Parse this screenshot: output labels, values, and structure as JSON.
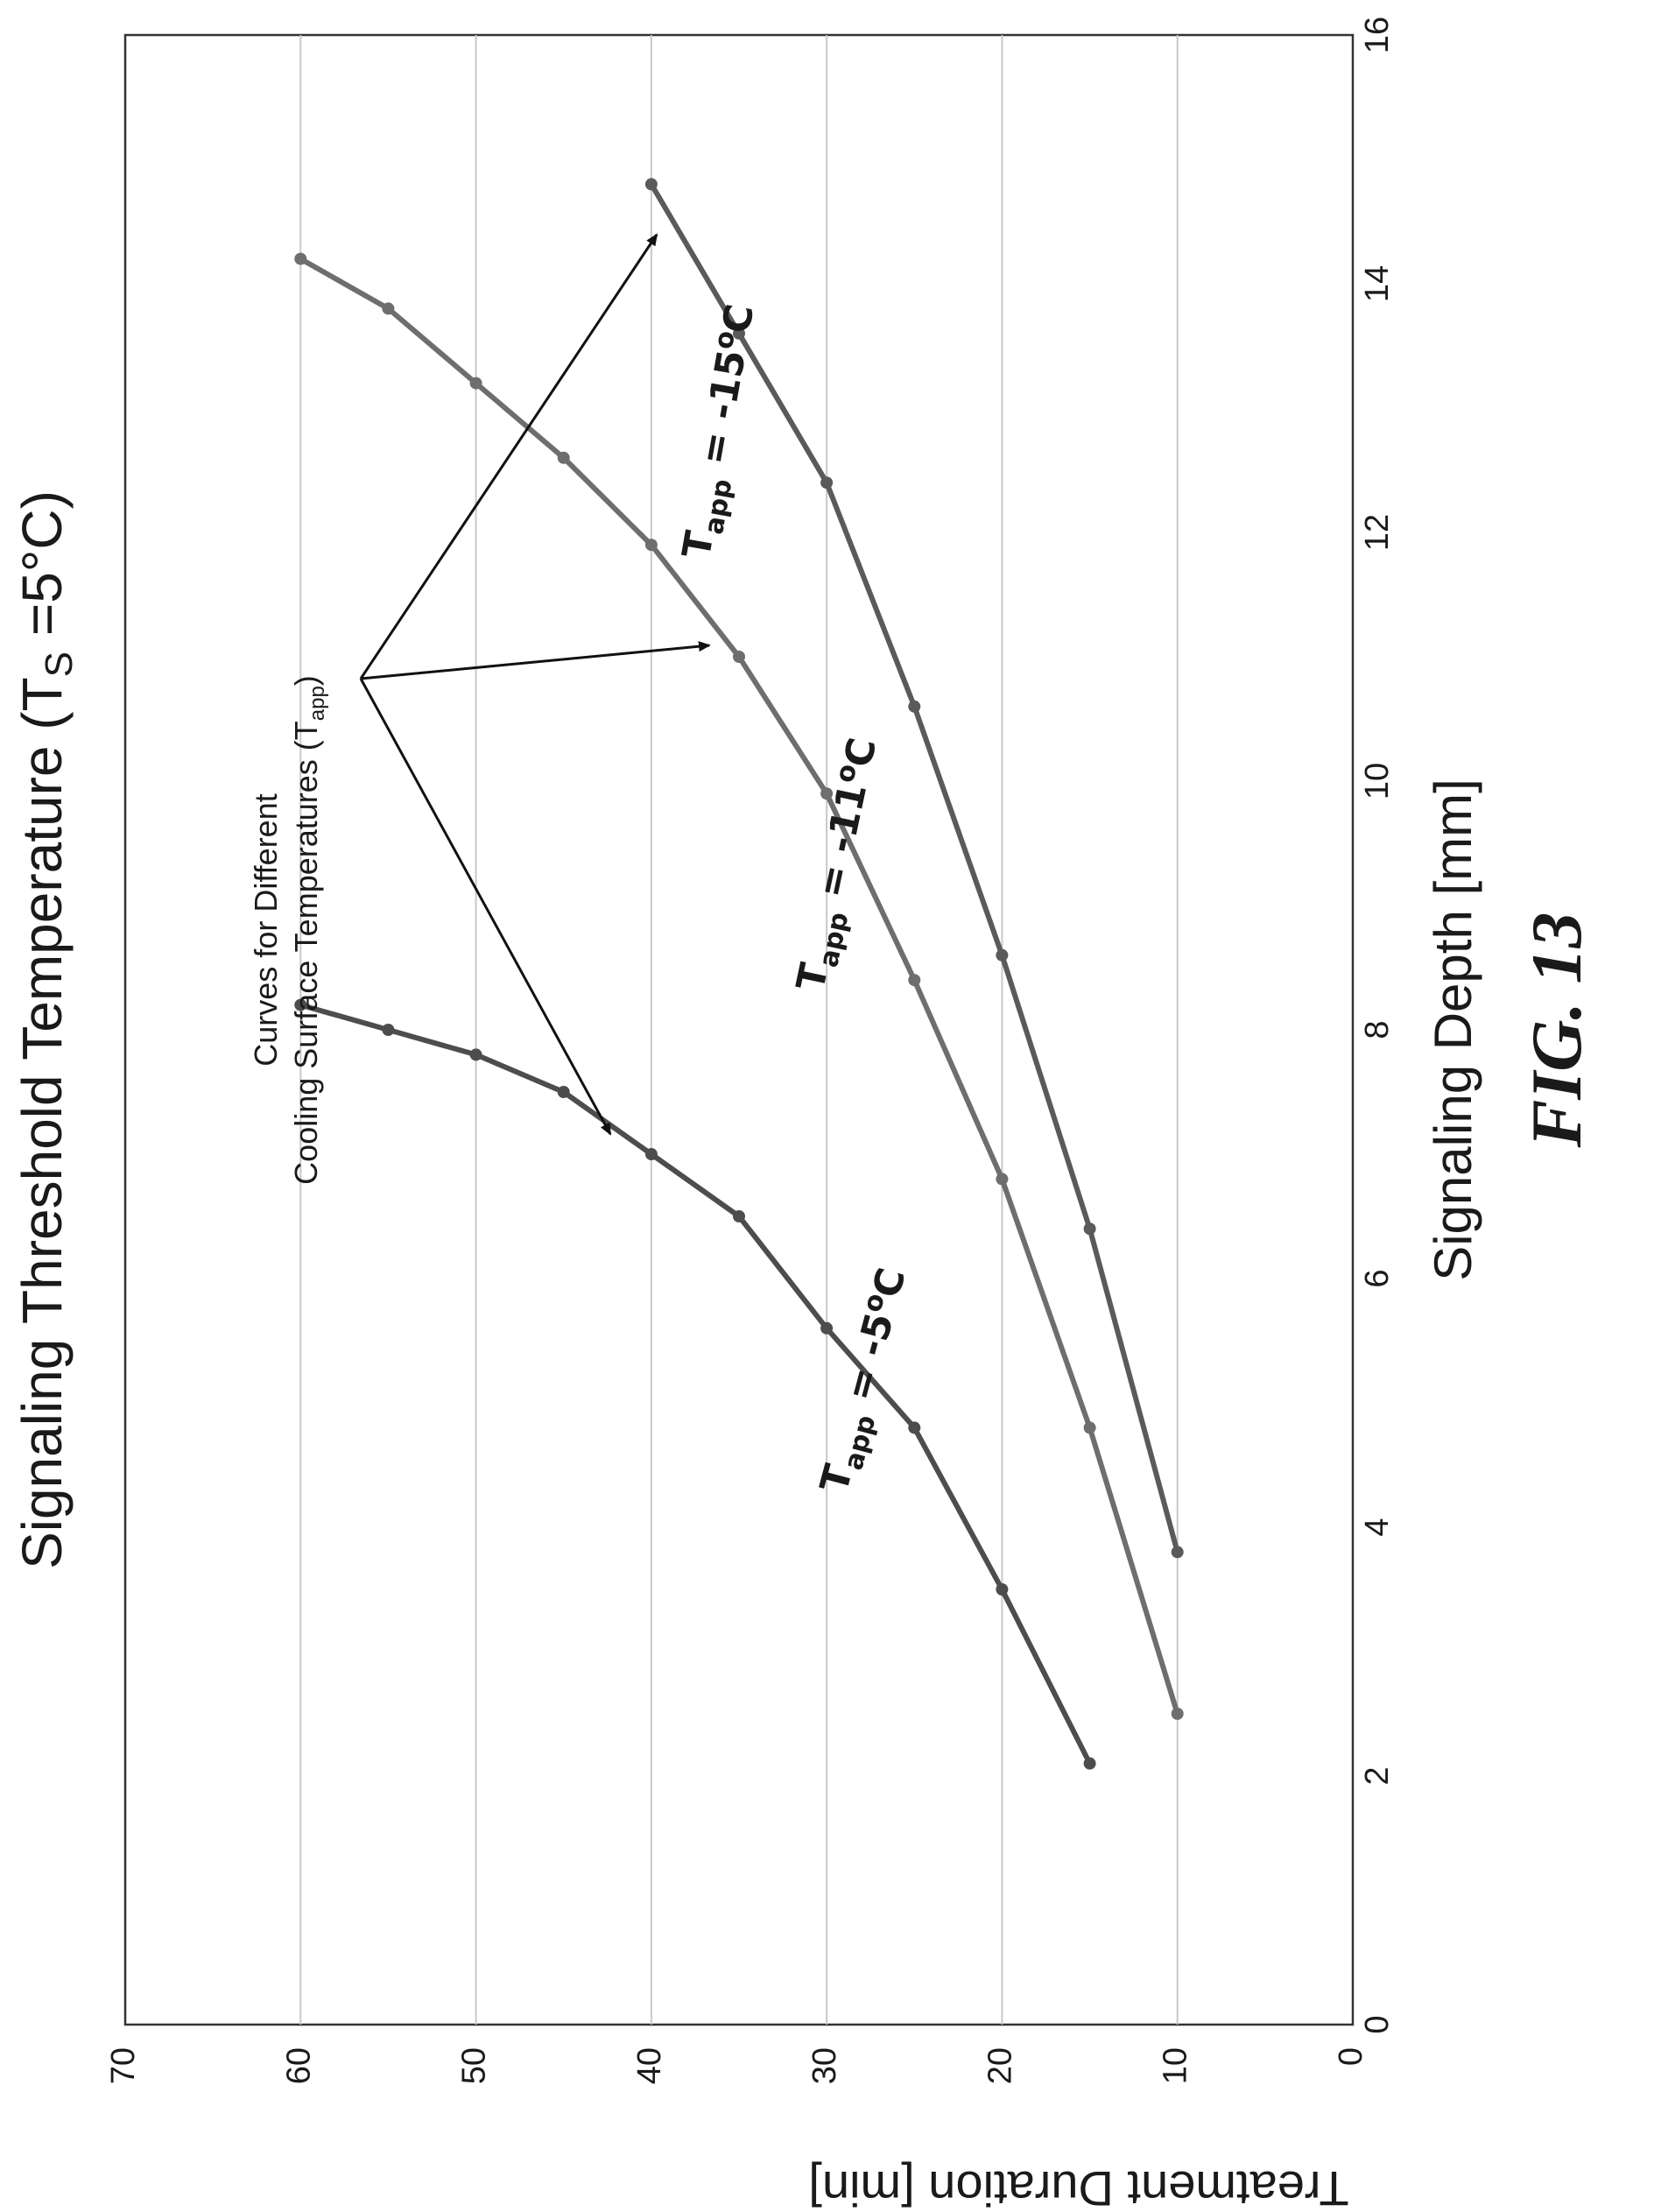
{
  "figure_caption": "FIG. 13",
  "chart_data": {
    "type": "line",
    "title": "Signaling Threshold Temperature (T",
    "title_sub": "S",
    "title_end": " =5°C)",
    "xlabel": "Signaling Depth [mm]",
    "ylabel": "Treatment Duration [min]",
    "xlim": [
      0,
      16
    ],
    "ylim": [
      0,
      70
    ],
    "xticks": [
      "0",
      "2",
      "4",
      "6",
      "8",
      "10",
      "12",
      "14",
      "16"
    ],
    "yticks": [
      "0",
      "10",
      "20",
      "30",
      "40",
      "50",
      "60",
      "70"
    ],
    "grid": "horizontal",
    "series": [
      {
        "label_main": "T",
        "label_sub": "app",
        "label_rest": " = -5",
        "label_sup": "o",
        "label_unit": "C",
        "color": "#4d4d4d",
        "x": [
          2.1,
          3.5,
          4.8,
          5.6,
          6.5,
          7.0,
          7.5,
          7.8,
          8.0,
          8.2
        ],
        "y": [
          15,
          20,
          25,
          30,
          35,
          40,
          45,
          50,
          55,
          60
        ]
      },
      {
        "label_main": "T",
        "label_sub": "app",
        "label_rest": " = -11",
        "label_sup": "o",
        "label_unit": "C",
        "color": "#6e6e6e",
        "x": [
          2.5,
          4.8,
          6.8,
          8.4,
          9.9,
          11.0,
          11.9,
          12.6,
          13.2,
          13.8,
          14.2
        ],
        "y": [
          10,
          15,
          20,
          25,
          30,
          35,
          40,
          45,
          50,
          55,
          60
        ]
      },
      {
        "label_main": "T",
        "label_sub": "app",
        "label_rest": " = -15",
        "label_sup": "o",
        "label_unit": "C",
        "color": "#5a5a5a",
        "x": [
          3.8,
          6.4,
          8.6,
          10.6,
          12.4,
          13.6,
          14.8
        ],
        "y": [
          10,
          15,
          20,
          25,
          30,
          35,
          40
        ]
      }
    ],
    "annotation": {
      "line1": "Curves for Different",
      "line2": "Cooling Surface Temperatures (T",
      "line2_sub": "app",
      "line2_end": ")"
    }
  }
}
